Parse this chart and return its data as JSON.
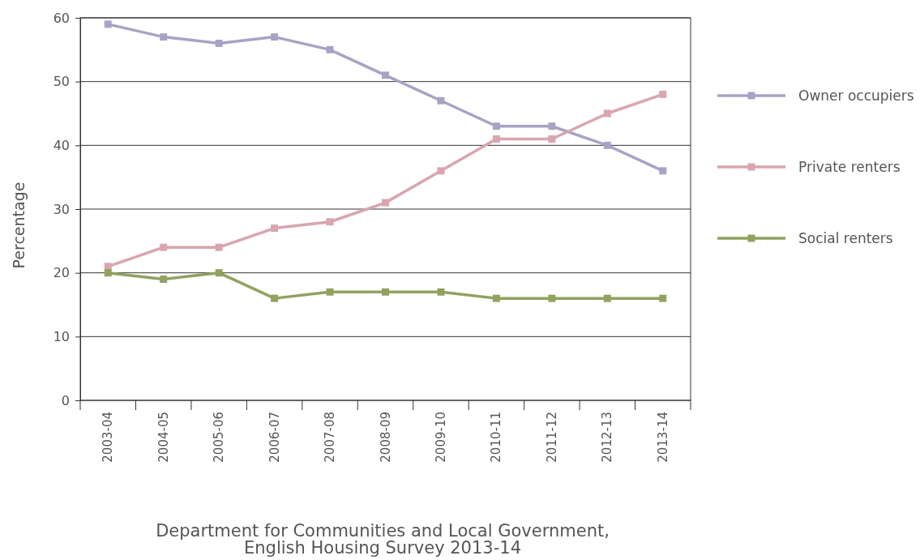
{
  "chart_data": {
    "type": "line",
    "ylabel": "Percentage",
    "categories": [
      "2003-04",
      "2004-05",
      "2005-06",
      "2006-07",
      "2007-08",
      "2008-09",
      "2009-10",
      "2010-11",
      "2011-12",
      "2012-13",
      "2013-14"
    ],
    "series": [
      {
        "name": "Owner occupiers",
        "color": "#a7a3c8",
        "values": [
          59,
          57,
          56,
          57,
          55,
          51,
          47,
          43,
          43,
          40,
          36
        ]
      },
      {
        "name": "Private renters",
        "color": "#dca4ac",
        "values": [
          21,
          24,
          24,
          27,
          28,
          31,
          36,
          41,
          41,
          45,
          48
        ]
      },
      {
        "name": "Social renters",
        "color": "#8fa35a",
        "values": [
          20,
          19,
          20,
          16,
          17,
          17,
          17,
          16,
          16,
          16,
          16
        ]
      }
    ],
    "ylim": [
      0,
      60
    ],
    "yticks": [
      0,
      10,
      20,
      30,
      40,
      50,
      60
    ],
    "grid": "y",
    "legend": "right",
    "marker": "square",
    "line_style": "solid",
    "annotations": [
      "Department for Communities and Local Government, English Housing Survey 2013-14"
    ]
  }
}
